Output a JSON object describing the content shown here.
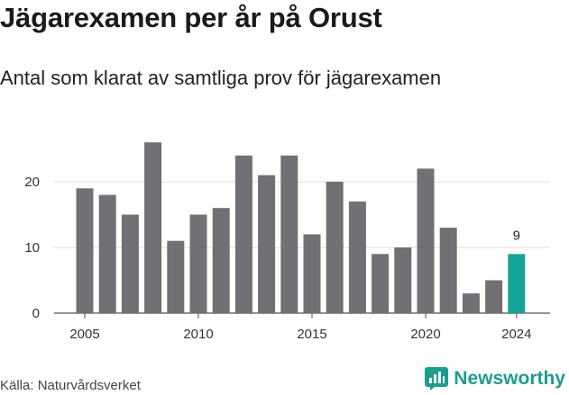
{
  "header": {
    "title": "Jägarexamen per år på Orust",
    "subtitle": "Antal som klarat av samtliga prov för jägarexamen"
  },
  "footer": {
    "source": "Källa: Naturvårdsverket",
    "brand": "Newsworthy"
  },
  "colors": {
    "bar": "#717075",
    "highlight": "#17a597",
    "grid": "#dcdcdc",
    "brand": "#1f9c8e"
  },
  "chart_data": {
    "type": "bar",
    "categories": [
      2005,
      2006,
      2007,
      2008,
      2009,
      2010,
      2011,
      2012,
      2013,
      2014,
      2015,
      2016,
      2017,
      2018,
      2019,
      2020,
      2021,
      2022,
      2023,
      2024
    ],
    "values": [
      19,
      18,
      15,
      26,
      11,
      15,
      16,
      24,
      21,
      24,
      12,
      20,
      17,
      9,
      10,
      22,
      13,
      3,
      5,
      9
    ],
    "highlight_category": 2024,
    "data_labels": [
      {
        "category": 2024,
        "text": "9"
      }
    ],
    "xticks": [
      2005,
      2010,
      2015,
      2020,
      2024
    ],
    "yticks": [
      0,
      10,
      20
    ],
    "ylim": [
      0,
      28
    ],
    "grid": true,
    "xlabel": "",
    "ylabel": ""
  }
}
